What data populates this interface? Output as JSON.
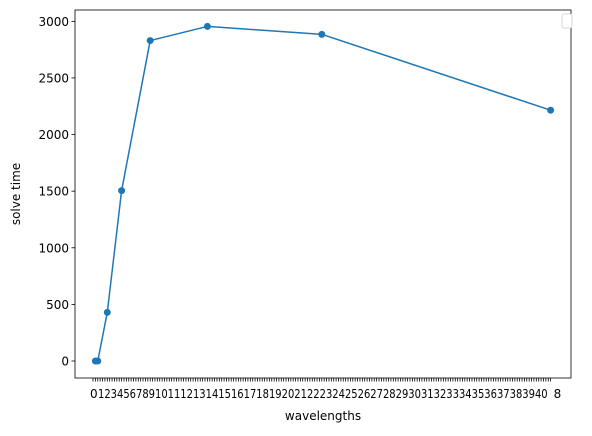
{
  "chart_data": {
    "type": "line",
    "title": "",
    "xlabel": "wavelengths",
    "ylabel": "solve time",
    "x": [
      1,
      2,
      6,
      12,
      24,
      48,
      96,
      192
    ],
    "series": [
      {
        "name": "",
        "values": [
          0,
          0,
          430,
          1505,
          2830,
          2955,
          2885,
          2215
        ]
      }
    ],
    "xlim": [
      -7.55,
      200.55
    ],
    "ylim": [
      -150,
      3100
    ],
    "yticks": [
      0,
      500,
      1000,
      1500,
      2000,
      2500,
      3000
    ],
    "ytick_labels": [
      "0",
      "500",
      "1000",
      "1500",
      "2000",
      "2500",
      "3000"
    ],
    "xticks_start": 0,
    "xticks_end": 192,
    "xtick_label_first": "0",
    "xtick_label_cluster": "12345678910111213141516171819202122232425262728293031323334353637383940",
    "xtick_label_last": "8",
    "legend": "top-right",
    "legend_entries": [],
    "line_color": "#1f77b4",
    "grid": false
  }
}
